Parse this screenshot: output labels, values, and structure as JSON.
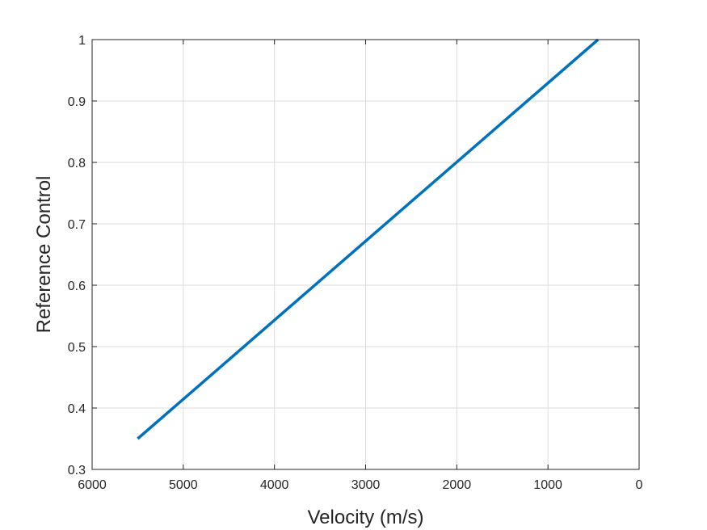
{
  "chart_data": {
    "type": "line",
    "title": "",
    "xlabel": "Velocity (m/s)",
    "ylabel": "Reference Control",
    "xlim": [
      6000,
      0
    ],
    "ylim": [
      0.3,
      1
    ],
    "x_reversed": true,
    "grid": true,
    "x_ticks": [
      6000,
      5000,
      4000,
      3000,
      2000,
      1000,
      0
    ],
    "x_tick_labels": [
      "6000",
      "5000",
      "4000",
      "3000",
      "2000",
      "1000",
      "0"
    ],
    "y_ticks": [
      0.3,
      0.4,
      0.5,
      0.6,
      0.7,
      0.8,
      0.9,
      1
    ],
    "y_tick_labels": [
      "0.3",
      "0.4",
      "0.5",
      "0.6",
      "0.7",
      "0.8",
      "0.9",
      "1"
    ],
    "series": [
      {
        "color": "#0072bd",
        "x": [
          5500,
          450
        ],
        "y": [
          0.35,
          1.0
        ]
      }
    ]
  }
}
